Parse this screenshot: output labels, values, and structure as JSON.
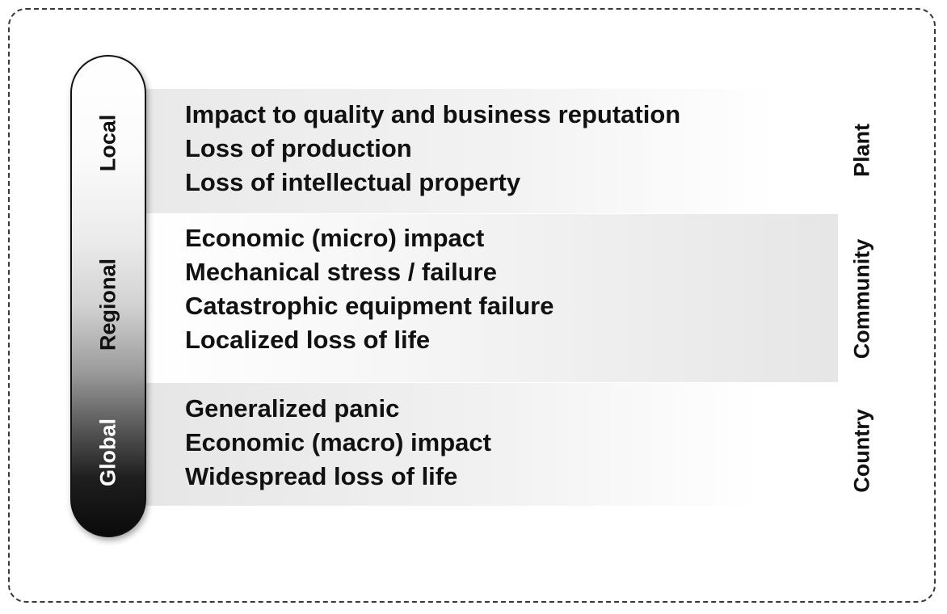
{
  "scale": {
    "top_label": "Local",
    "middle_label": "Regional",
    "bottom_label": "Global"
  },
  "bands": [
    {
      "scope": "Plant",
      "items": [
        "Impact to quality and business reputation",
        "Loss of production",
        "Loss of intellectual property"
      ]
    },
    {
      "scope": "Community",
      "items": [
        "Economic (micro) impact",
        "Mechanical stress / failure",
        "Catastrophic equipment failure",
        "Localized loss of life"
      ]
    },
    {
      "scope": "Country",
      "items": [
        "Generalized panic",
        "Economic (macro) impact",
        "Widespread loss of life"
      ]
    }
  ],
  "colors": {
    "frame": "#3a3a3a",
    "text": "#111111",
    "band_gray": "#e8e8e8"
  }
}
